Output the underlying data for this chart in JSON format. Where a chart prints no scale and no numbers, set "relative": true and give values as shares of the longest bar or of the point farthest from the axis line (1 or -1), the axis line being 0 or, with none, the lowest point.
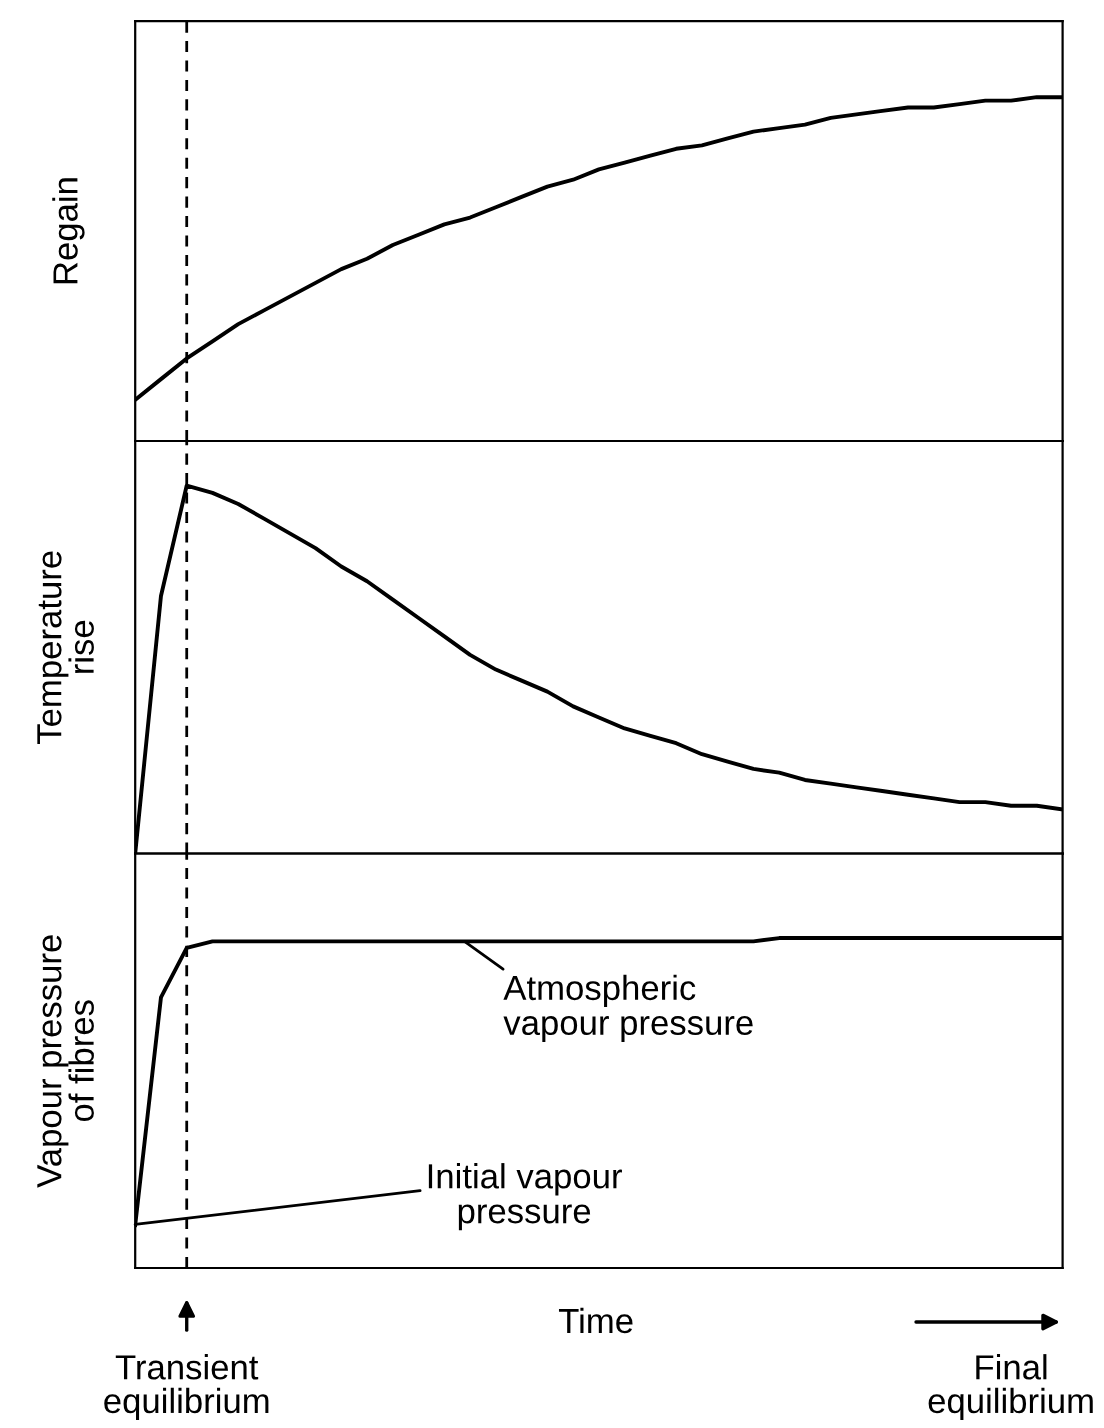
{
  "chart_data": [
    {
      "type": "line",
      "relative": true,
      "ylabel": "Regain",
      "tick_labels": false,
      "legend": false,
      "line_style": "solid",
      "marker": "none",
      "categories": [
        null,
        null,
        "Transient\nequilibrium",
        null,
        null,
        null,
        null,
        null,
        null,
        null,
        null,
        null,
        null,
        null,
        null,
        null,
        null,
        null,
        null,
        null,
        null,
        null,
        null,
        null,
        null,
        null,
        null,
        null,
        null,
        null,
        null,
        null,
        null,
        null,
        "Final\nequilibrium",
        null,
        null
      ],
      "series": [
        {
          "color": "#000000",
          "values": [
            0.12,
            0.18,
            0.24,
            0.29,
            0.34,
            0.38,
            0.42,
            0.46,
            0.5,
            0.53,
            0.57,
            0.6,
            0.63,
            0.65,
            0.68,
            0.71,
            0.74,
            0.76,
            0.79,
            0.81,
            0.83,
            0.85,
            0.86,
            0.88,
            0.9,
            0.91,
            0.92,
            0.94,
            0.95,
            0.96,
            0.97,
            0.97,
            0.98,
            0.99,
            0.99,
            1,
            1
          ]
        }
      ],
      "ref_lines": [
        {
          "axis": "x",
          "value": "Transient\nequilibrium",
          "color": "#000000",
          "line_style": "dashed"
        }
      ]
    },
    {
      "type": "line",
      "relative": true,
      "ylabel": "Temperature\nrise",
      "tick_labels": false,
      "legend": false,
      "line_style": "solid",
      "marker": "none",
      "categories": [
        null,
        null,
        "Transient\nequilibrium",
        null,
        null,
        null,
        null,
        null,
        null,
        null,
        null,
        null,
        null,
        null,
        null,
        null,
        null,
        null,
        null,
        null,
        null,
        null,
        null,
        null,
        null,
        null,
        null,
        null,
        null,
        null,
        null,
        null,
        null,
        null,
        "Final\nequilibrium",
        null,
        null
      ],
      "series": [
        {
          "color": "#000000",
          "values": [
            0,
            0.7,
            1,
            0.98,
            0.95,
            0.91,
            0.87,
            0.83,
            0.78,
            0.74,
            0.69,
            0.64,
            0.59,
            0.54,
            0.5,
            0.47,
            0.44,
            0.4,
            0.37,
            0.34,
            0.32,
            0.3,
            0.27,
            0.25,
            0.23,
            0.22,
            0.2,
            0.19,
            0.18,
            0.17,
            0.16,
            0.15,
            0.14,
            0.14,
            0.13,
            0.13,
            0.12
          ]
        }
      ],
      "ref_lines": [
        {
          "axis": "x",
          "value": "Transient\nequilibrium",
          "color": "#000000",
          "line_style": "dashed"
        }
      ]
    },
    {
      "type": "line",
      "relative": true,
      "ylabel": "Vapour pressure\nof fibres",
      "xlabel": "Time",
      "tick_labels": "x",
      "legend": false,
      "line_style": "solid",
      "marker": "none",
      "categories": [
        null,
        null,
        "Transient\nequilibrium",
        null,
        null,
        null,
        null,
        null,
        null,
        null,
        null,
        null,
        null,
        null,
        null,
        null,
        null,
        null,
        null,
        null,
        null,
        null,
        null,
        null,
        null,
        null,
        null,
        null,
        null,
        null,
        null,
        null,
        null,
        null,
        "Final\nequilibrium",
        null,
        null
      ],
      "series": [
        {
          "color": "#000000",
          "values": [
            0.13,
            0.82,
            0.97,
            0.99,
            0.99,
            0.99,
            0.99,
            0.99,
            0.99,
            0.99,
            0.99,
            0.99,
            0.99,
            0.99,
            0.99,
            0.99,
            0.99,
            0.99,
            0.99,
            0.99,
            0.99,
            0.99,
            0.99,
            0.99,
            0.99,
            1,
            1,
            1,
            1,
            1,
            1,
            1,
            1,
            1,
            1,
            1,
            1
          ]
        }
      ],
      "ref_lines": [
        {
          "axis": "x",
          "value": "Transient\nequilibrium",
          "color": "#000000",
          "line_style": "dashed"
        }
      ],
      "annotations": [
        {
          "text": "Atmospheric\nvapour pressure",
          "y": 0.99
        },
        "Initial vapour\npressure"
      ]
    }
  ]
}
